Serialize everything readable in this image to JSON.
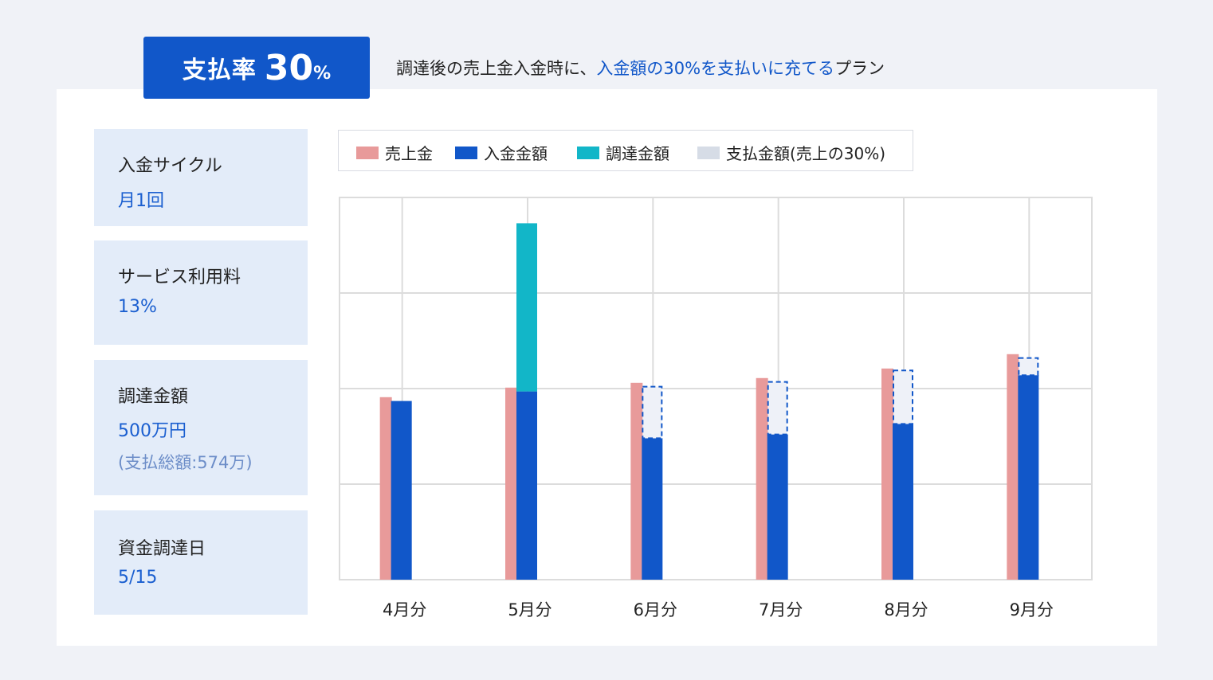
{
  "badge": {
    "label": "支払率",
    "rate": "30",
    "unit": "%"
  },
  "headline": {
    "pre": "調達後の売上金入金時に、",
    "highlight": "入金額の30%を支払いに充てる",
    "post": "プラン"
  },
  "info": [
    {
      "title": "入金サイクル",
      "value": "月1回"
    },
    {
      "title": "サービス利用料",
      "value": "13%"
    },
    {
      "title": "調達金額",
      "value": "500万円",
      "sub": "(支払総額:574万)"
    },
    {
      "title": "資金調達日",
      "value": "5/15"
    }
  ],
  "legend": [
    {
      "label": "売上金",
      "color": "#e89a9a"
    },
    {
      "label": "入金金額",
      "color": "#1157c9"
    },
    {
      "label": "調達金額",
      "color": "#12b6c8"
    },
    {
      "label": "支払金額(売上の30%)",
      "color": "#d6dce6"
    }
  ],
  "colors": {
    "accent": "#1157c9",
    "sales": "#e89a9a",
    "deposit": "#1157c9",
    "funding": "#12b6c8",
    "payment": "#eef1f8",
    "payment_border": "#1157c9",
    "grid": "#dcdcdc"
  },
  "chart_data": {
    "type": "bar",
    "categories": [
      "4月分",
      "5月分",
      "6月分",
      "7月分",
      "8月分",
      "9月分"
    ],
    "ylim": [
      0,
      400
    ],
    "grid": true,
    "legend_position": "top",
    "series": [
      {
        "name": "売上金",
        "values": [
          191,
          201,
          206,
          211,
          221,
          236
        ]
      },
      {
        "name": "入金金額",
        "values": [
          187,
          197,
          148,
          152,
          163,
          214
        ]
      },
      {
        "name": "調達金額",
        "values": [
          0,
          176,
          0,
          0,
          0,
          0
        ]
      },
      {
        "name": "支払金額(売上の30%)",
        "values": [
          0,
          0,
          54,
          55,
          56,
          18
        ]
      }
    ]
  }
}
